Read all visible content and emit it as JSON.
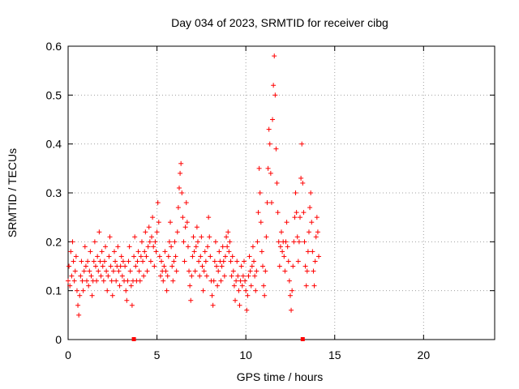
{
  "chart_data": {
    "type": "scatter",
    "title": "Day 034 of 2023, SRMTID for receiver cibg",
    "xlabel": "GPS time / hours",
    "ylabel": "SRMTID / TECUs",
    "xlim": [
      0,
      24
    ],
    "ylim": [
      0,
      0.6
    ],
    "x_ticks": [
      0,
      5,
      10,
      15,
      20
    ],
    "x_tick_labels": [
      "0",
      "5",
      "10",
      "15",
      "20"
    ],
    "y_ticks": [
      0,
      0.1,
      0.2,
      0.3,
      0.4,
      0.5,
      0.6
    ],
    "y_tick_labels": [
      "0",
      "0.1",
      "0.2",
      "0.3",
      "0.4",
      "0.5",
      "0.6"
    ],
    "grid": true,
    "marker": "plus",
    "series_color": "#ff0000",
    "series": [
      {
        "name": "SRMTID",
        "points": [
          [
            0.0,
            0.12
          ],
          [
            0.05,
            0.15
          ],
          [
            0.1,
            0.11
          ],
          [
            0.15,
            0.18
          ],
          [
            0.2,
            0.13
          ],
          [
            0.25,
            0.2
          ],
          [
            0.3,
            0.16
          ],
          [
            0.35,
            0.12
          ],
          [
            0.4,
            0.14
          ],
          [
            0.45,
            0.17
          ],
          [
            0.5,
            0.1
          ],
          [
            0.55,
            0.07
          ],
          [
            0.6,
            0.05
          ],
          [
            0.65,
            0.09
          ],
          [
            0.7,
            0.13
          ],
          [
            0.75,
            0.16
          ],
          [
            0.8,
            0.12
          ],
          [
            0.85,
            0.1
          ],
          [
            0.9,
            0.14
          ],
          [
            0.95,
            0.19
          ],
          [
            1.0,
            0.15
          ],
          [
            1.05,
            0.12
          ],
          [
            1.1,
            0.16
          ],
          [
            1.15,
            0.11
          ],
          [
            1.2,
            0.14
          ],
          [
            1.25,
            0.18
          ],
          [
            1.3,
            0.13
          ],
          [
            1.35,
            0.09
          ],
          [
            1.4,
            0.12
          ],
          [
            1.45,
            0.16
          ],
          [
            1.5,
            0.2
          ],
          [
            1.55,
            0.15
          ],
          [
            1.6,
            0.12
          ],
          [
            1.65,
            0.17
          ],
          [
            1.7,
            0.14
          ],
          [
            1.75,
            0.22
          ],
          [
            1.8,
            0.16
          ],
          [
            1.85,
            0.13
          ],
          [
            1.9,
            0.18
          ],
          [
            1.95,
            0.15
          ],
          [
            2.0,
            0.12
          ],
          [
            2.05,
            0.16
          ],
          [
            2.1,
            0.19
          ],
          [
            2.15,
            0.14
          ],
          [
            2.2,
            0.1
          ],
          [
            2.25,
            0.13
          ],
          [
            2.3,
            0.17
          ],
          [
            2.35,
            0.21
          ],
          [
            2.4,
            0.15
          ],
          [
            2.45,
            0.12
          ],
          [
            2.5,
            0.09
          ],
          [
            2.55,
            0.14
          ],
          [
            2.6,
            0.18
          ],
          [
            2.65,
            0.16
          ],
          [
            2.7,
            0.12
          ],
          [
            2.75,
            0.15
          ],
          [
            2.8,
            0.19
          ],
          [
            2.85,
            0.14
          ],
          [
            2.9,
            0.11
          ],
          [
            2.95,
            0.15
          ],
          [
            3.0,
            0.17
          ],
          [
            3.05,
            0.13
          ],
          [
            3.1,
            0.16
          ],
          [
            3.15,
            0.12
          ],
          [
            3.2,
            0.15
          ],
          [
            3.25,
            0.1
          ],
          [
            3.3,
            0.08
          ],
          [
            3.35,
            0.12
          ],
          [
            3.4,
            0.16
          ],
          [
            3.45,
            0.19
          ],
          [
            3.5,
            0.14
          ],
          [
            3.55,
            0.11
          ],
          [
            3.6,
            0.07
          ],
          [
            3.65,
            0.12
          ],
          [
            3.7,
            0.17
          ],
          [
            3.75,
            0.21
          ],
          [
            3.8,
            0.15
          ],
          [
            3.85,
            0.12
          ],
          [
            3.9,
            0.16
          ],
          [
            3.95,
            0.18
          ],
          [
            4.0,
            0.14
          ],
          [
            4.05,
            0.12
          ],
          [
            4.1,
            0.17
          ],
          [
            4.15,
            0.2
          ],
          [
            4.2,
            0.16
          ],
          [
            4.25,
            0.13
          ],
          [
            4.3,
            0.18
          ],
          [
            4.35,
            0.22
          ],
          [
            4.4,
            0.17
          ],
          [
            4.45,
            0.14
          ],
          [
            4.5,
            0.19
          ],
          [
            4.55,
            0.23
          ],
          [
            4.6,
            0.2
          ],
          [
            4.65,
            0.16
          ],
          [
            4.7,
            0.21
          ],
          [
            4.75,
            0.25
          ],
          [
            4.8,
            0.19
          ],
          [
            4.85,
            0.15
          ],
          [
            4.9,
            0.2
          ],
          [
            4.95,
            0.18
          ],
          [
            5.0,
            0.22
          ],
          [
            5.05,
            0.28
          ],
          [
            5.1,
            0.24
          ],
          [
            5.15,
            0.17
          ],
          [
            5.2,
            0.13
          ],
          [
            5.25,
            0.16
          ],
          [
            5.3,
            0.14
          ],
          [
            5.35,
            0.12
          ],
          [
            5.4,
            0.15
          ],
          [
            5.45,
            0.18
          ],
          [
            5.5,
            0.14
          ],
          [
            5.55,
            0.1
          ],
          [
            5.6,
            0.13
          ],
          [
            5.65,
            0.17
          ],
          [
            5.7,
            0.2
          ],
          [
            5.75,
            0.24
          ],
          [
            5.8,
            0.19
          ],
          [
            5.85,
            0.15
          ],
          [
            5.9,
            0.12
          ],
          [
            5.95,
            0.16
          ],
          [
            6.0,
            0.2
          ],
          [
            6.05,
            0.17
          ],
          [
            6.1,
            0.14
          ],
          [
            6.15,
            0.22
          ],
          [
            6.2,
            0.27
          ],
          [
            6.25,
            0.31
          ],
          [
            6.3,
            0.34
          ],
          [
            6.35,
            0.36
          ],
          [
            6.4,
            0.3
          ],
          [
            6.45,
            0.25
          ],
          [
            6.5,
            0.2
          ],
          [
            6.55,
            0.16
          ],
          [
            6.6,
            0.23
          ],
          [
            6.65,
            0.28
          ],
          [
            6.7,
            0.24
          ],
          [
            6.75,
            0.19
          ],
          [
            6.8,
            0.14
          ],
          [
            6.85,
            0.11
          ],
          [
            6.9,
            0.08
          ],
          [
            6.95,
            0.13
          ],
          [
            7.0,
            0.17
          ],
          [
            7.05,
            0.21
          ],
          [
            7.1,
            0.18
          ],
          [
            7.15,
            0.14
          ],
          [
            7.2,
            0.19
          ],
          [
            7.25,
            0.23
          ],
          [
            7.3,
            0.2
          ],
          [
            7.35,
            0.16
          ],
          [
            7.4,
            0.13
          ],
          [
            7.45,
            0.17
          ],
          [
            7.5,
            0.21
          ],
          [
            7.55,
            0.15
          ],
          [
            7.6,
            0.1
          ],
          [
            7.65,
            0.14
          ],
          [
            7.7,
            0.18
          ],
          [
            7.75,
            0.16
          ],
          [
            7.8,
            0.13
          ],
          [
            7.85,
            0.19
          ],
          [
            7.9,
            0.25
          ],
          [
            7.95,
            0.21
          ],
          [
            8.0,
            0.17
          ],
          [
            8.05,
            0.12
          ],
          [
            8.1,
            0.09
          ],
          [
            8.15,
            0.07
          ],
          [
            8.2,
            0.12
          ],
          [
            8.25,
            0.16
          ],
          [
            8.3,
            0.2
          ],
          [
            8.35,
            0.15
          ],
          [
            8.4,
            0.11
          ],
          [
            8.45,
            0.14
          ],
          [
            8.5,
            0.18
          ],
          [
            8.55,
            0.16
          ],
          [
            8.6,
            0.12
          ],
          [
            8.65,
            0.15
          ],
          [
            8.7,
            0.19
          ],
          [
            8.75,
            0.16
          ],
          [
            8.8,
            0.13
          ],
          [
            8.85,
            0.17
          ],
          [
            8.9,
            0.21
          ],
          [
            8.95,
            0.19
          ],
          [
            9.0,
            0.22
          ],
          [
            9.05,
            0.18
          ],
          [
            9.1,
            0.2
          ],
          [
            9.15,
            0.16
          ],
          [
            9.2,
            0.13
          ],
          [
            9.25,
            0.17
          ],
          [
            9.3,
            0.14
          ],
          [
            9.35,
            0.11
          ],
          [
            9.4,
            0.08
          ],
          [
            9.45,
            0.12
          ],
          [
            9.5,
            0.16
          ],
          [
            9.55,
            0.13
          ],
          [
            9.6,
            0.1
          ],
          [
            9.65,
            0.07
          ],
          [
            9.7,
            0.12
          ],
          [
            9.75,
            0.15
          ],
          [
            9.8,
            0.11
          ],
          [
            9.85,
            0.13
          ],
          [
            9.9,
            0.16
          ],
          [
            9.95,
            0.12
          ],
          [
            10.0,
            0.1
          ],
          [
            10.05,
            0.06
          ],
          [
            10.1,
            0.09
          ],
          [
            10.15,
            0.13
          ],
          [
            10.2,
            0.17
          ],
          [
            10.25,
            0.14
          ],
          [
            10.3,
            0.11
          ],
          [
            10.35,
            0.15
          ],
          [
            10.4,
            0.19
          ],
          [
            10.45,
            0.16
          ],
          [
            10.5,
            0.13
          ],
          [
            10.55,
            0.1
          ],
          [
            10.6,
            0.14
          ],
          [
            10.65,
            0.2
          ],
          [
            10.7,
            0.26
          ],
          [
            10.75,
            0.35
          ],
          [
            10.8,
            0.3
          ],
          [
            10.85,
            0.24
          ],
          [
            10.9,
            0.18
          ],
          [
            10.95,
            0.15
          ],
          [
            11.0,
            0.11
          ],
          [
            11.05,
            0.09
          ],
          [
            11.1,
            0.14
          ],
          [
            11.15,
            0.21
          ],
          [
            11.2,
            0.28
          ],
          [
            11.25,
            0.35
          ],
          [
            11.3,
            0.43
          ],
          [
            11.35,
            0.4
          ],
          [
            11.4,
            0.34
          ],
          [
            11.45,
            0.28
          ],
          [
            11.5,
            0.45
          ],
          [
            11.55,
            0.52
          ],
          [
            11.6,
            0.58
          ],
          [
            11.65,
            0.5
          ],
          [
            11.7,
            0.39
          ],
          [
            11.75,
            0.32
          ],
          [
            11.8,
            0.26
          ],
          [
            11.85,
            0.2
          ],
          [
            11.9,
            0.15
          ],
          [
            11.95,
            0.19
          ],
          [
            12.0,
            0.22
          ],
          [
            12.05,
            0.18
          ],
          [
            12.1,
            0.2
          ],
          [
            12.15,
            0.17
          ],
          [
            12.2,
            0.14
          ],
          [
            12.25,
            0.2
          ],
          [
            12.3,
            0.24
          ],
          [
            12.35,
            0.19
          ],
          [
            12.4,
            0.16
          ],
          [
            12.45,
            0.12
          ],
          [
            12.5,
            0.09
          ],
          [
            12.55,
            0.06
          ],
          [
            12.6,
            0.1
          ],
          [
            12.65,
            0.15
          ],
          [
            12.7,
            0.2
          ],
          [
            12.75,
            0.25
          ],
          [
            12.8,
            0.3
          ],
          [
            12.85,
            0.26
          ],
          [
            12.9,
            0.21
          ],
          [
            12.95,
            0.16
          ],
          [
            13.0,
            0.2
          ],
          [
            13.05,
            0.25
          ],
          [
            13.1,
            0.33
          ],
          [
            13.15,
            0.4
          ],
          [
            13.2,
            0.32
          ],
          [
            13.25,
            0.26
          ],
          [
            13.3,
            0.2
          ],
          [
            13.35,
            0.15
          ],
          [
            13.4,
            0.11
          ],
          [
            13.45,
            0.14
          ],
          [
            13.5,
            0.18
          ],
          [
            13.55,
            0.22
          ],
          [
            13.6,
            0.27
          ],
          [
            13.65,
            0.3
          ],
          [
            13.7,
            0.24
          ],
          [
            13.75,
            0.18
          ],
          [
            13.8,
            0.14
          ],
          [
            13.85,
            0.11
          ],
          [
            13.9,
            0.16
          ],
          [
            13.95,
            0.21
          ],
          [
            14.0,
            0.25
          ],
          [
            14.05,
            0.22
          ],
          [
            14.1,
            0.17
          ]
        ]
      }
    ],
    "gap_markers": [
      3.7,
      13.2
    ]
  }
}
